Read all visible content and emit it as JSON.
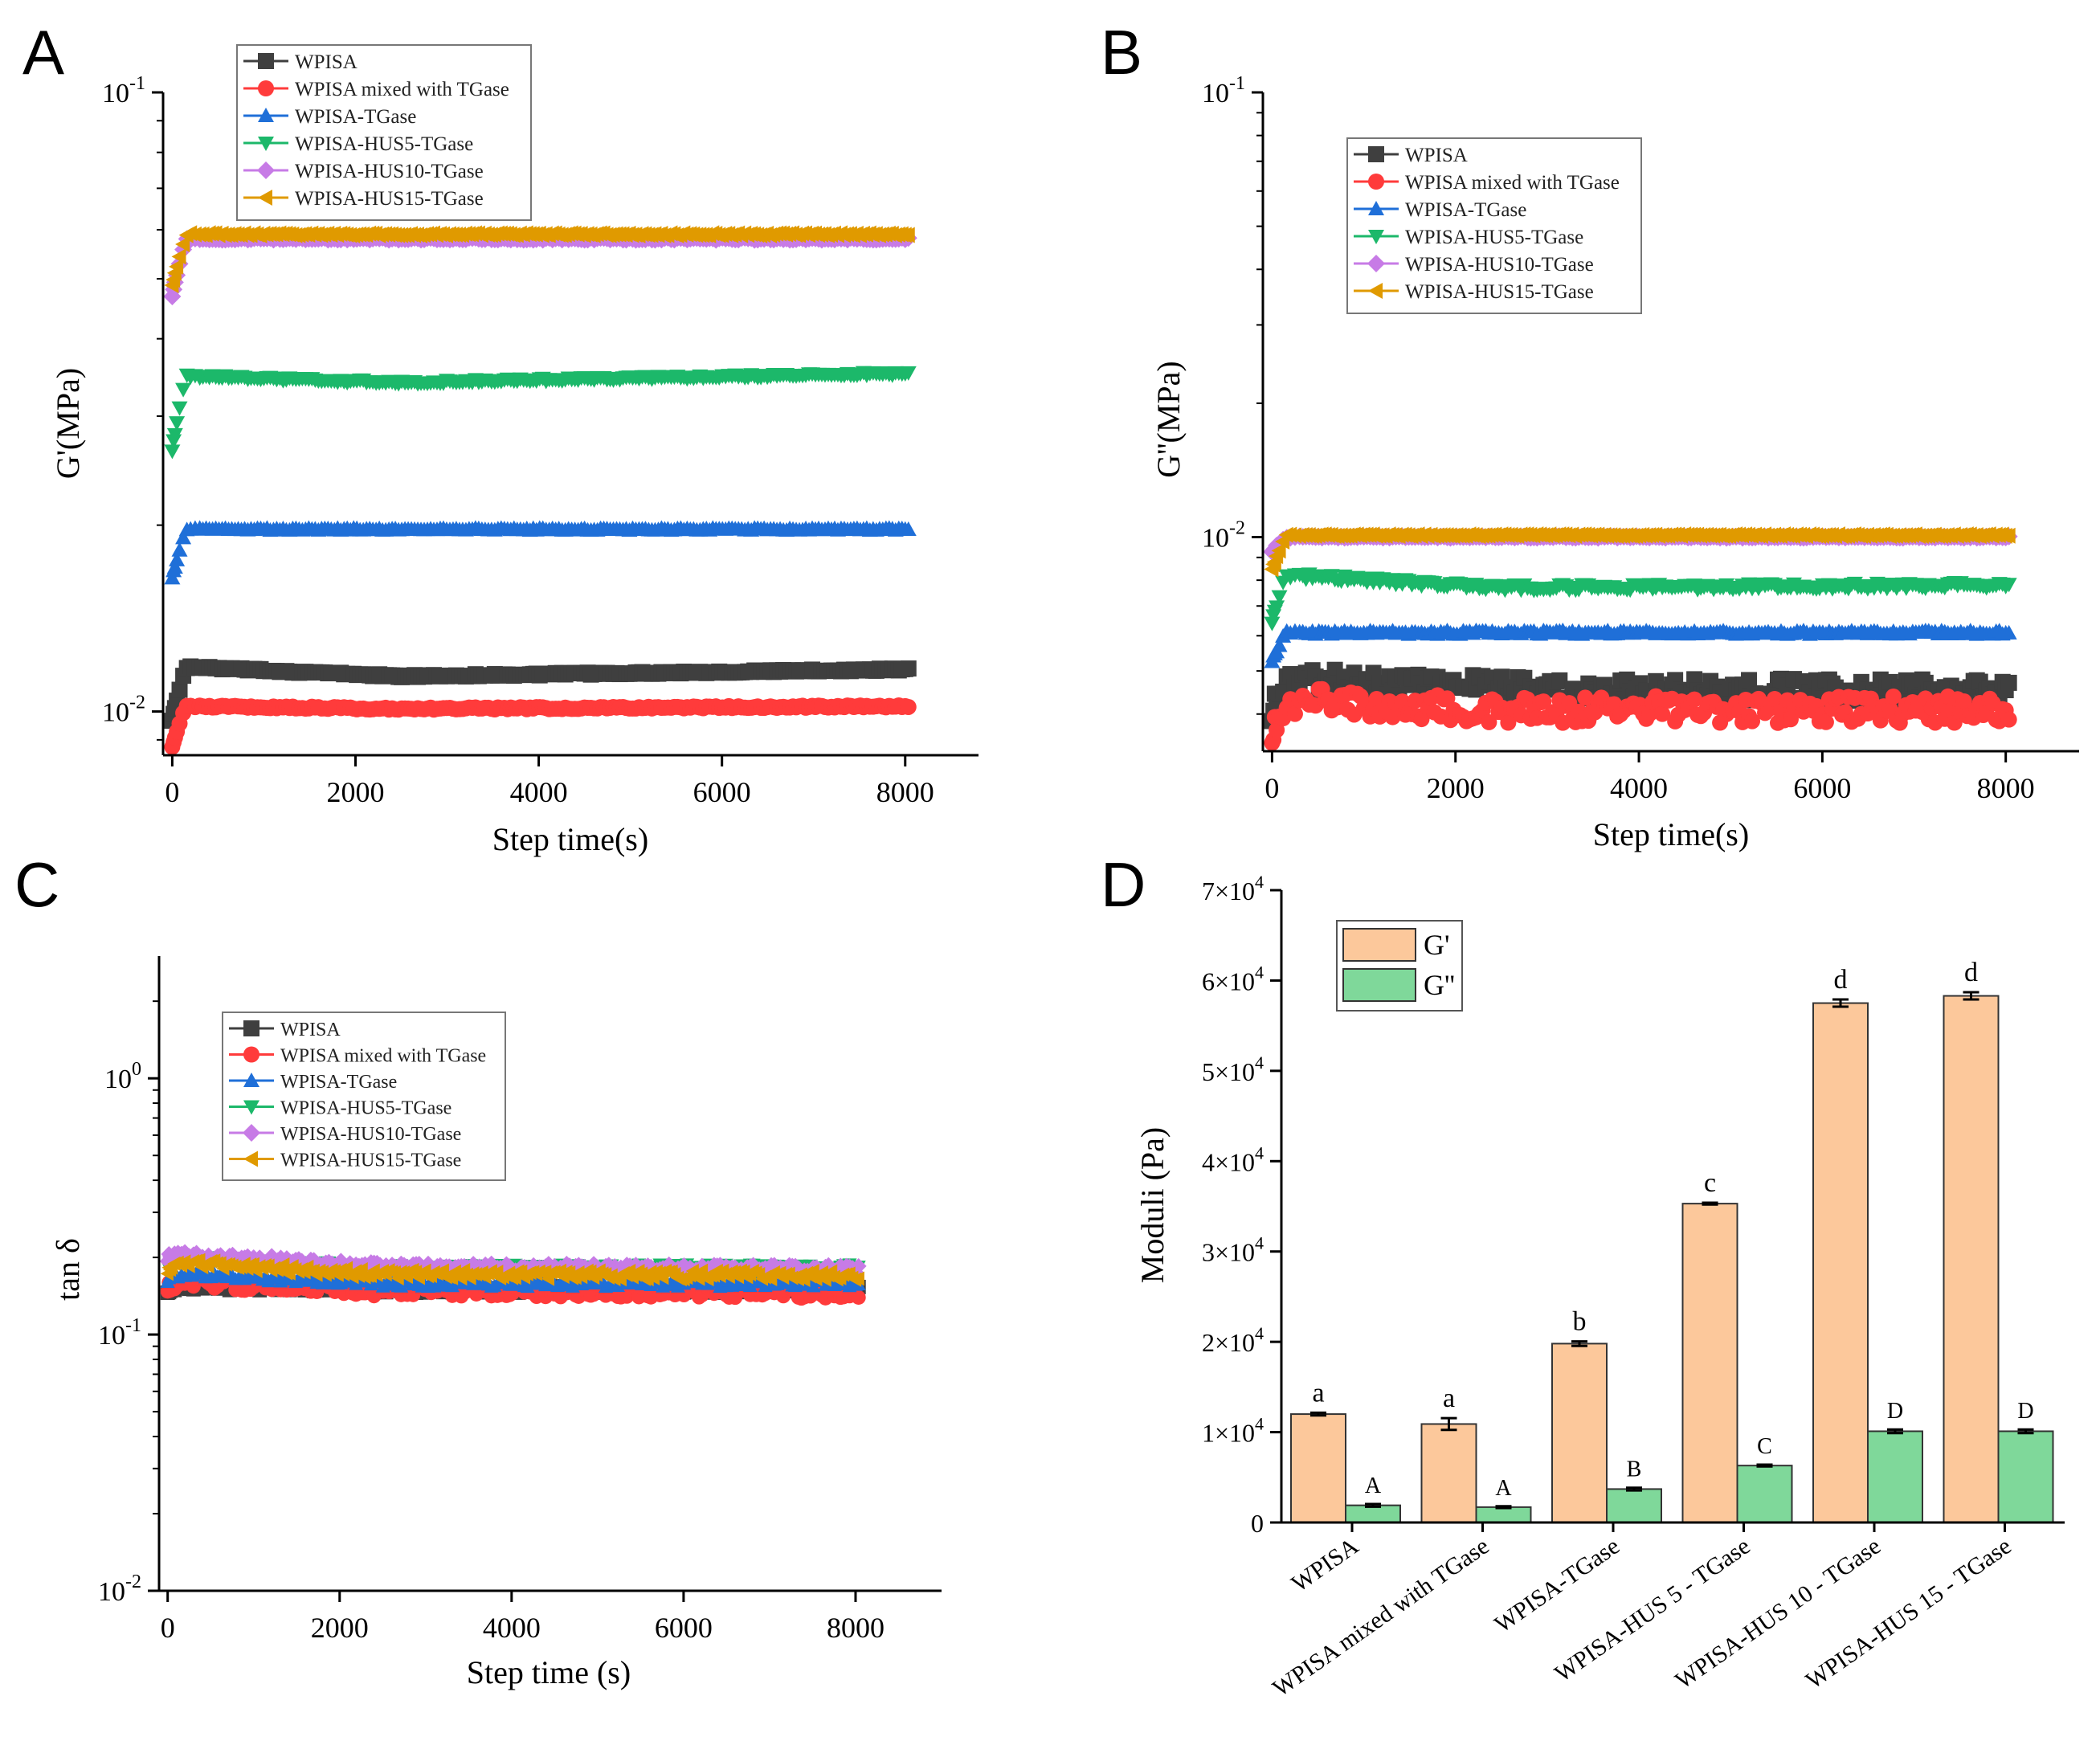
{
  "chart_data": [
    {
      "panel": "A",
      "type": "scatter",
      "xlabel": "Step time(s)",
      "ylabel": "G'(MPa)",
      "yscale": "log",
      "xlim": [
        -100,
        8800
      ],
      "ylim": [
        0.0085,
        0.1
      ],
      "xticks": [
        "0",
        "2000",
        "4000",
        "6000",
        "8000"
      ],
      "xtick_values": [
        0,
        2000,
        4000,
        6000,
        8000
      ],
      "yticks": [
        {
          "value": 0.1,
          "base": "10",
          "exp": "-1"
        },
        {
          "value": 0.01,
          "base": "10",
          "exp": "-2"
        }
      ],
      "legend_position": "top-left",
      "series": [
        {
          "name": "WPISA",
          "color": "#3f3f3f",
          "marker": "square",
          "start": 0.0097,
          "peak": 0.0118,
          "plateau": 0.0114,
          "end": 0.0117
        },
        {
          "name": "WPISA mixed with TGase",
          "color": "#ff3b3b",
          "marker": "circle",
          "start": 0.0088,
          "peak": 0.0102,
          "plateau": 0.0101,
          "end": 0.0102
        },
        {
          "name": "WPISA-TGase",
          "color": "#1f6fd8",
          "marker": "triangle-up",
          "start": 0.0165,
          "peak": 0.0197,
          "plateau": 0.0197,
          "end": 0.0197
        },
        {
          "name": "WPISA-HUS5-TGase",
          "color": "#1cb86a",
          "marker": "triangle-down",
          "start": 0.0265,
          "peak": 0.0348,
          "plateau": 0.034,
          "end": 0.0352
        },
        {
          "name": "WPISA-HUS10-TGase",
          "color": "#c77be6",
          "marker": "diamond",
          "start": 0.047,
          "peak": 0.058,
          "plateau": 0.058,
          "end": 0.058
        },
        {
          "name": "WPISA-HUS15-TGase",
          "color": "#e09a00",
          "marker": "triangle-left",
          "start": 0.049,
          "peak": 0.059,
          "plateau": 0.059,
          "end": 0.059
        }
      ]
    },
    {
      "panel": "B",
      "type": "scatter",
      "xlabel": "Step time(s)",
      "ylabel": "G''(MPa)",
      "yscale": "log",
      "xlim": [
        -100,
        8800
      ],
      "ylim": [
        0.0033,
        0.1
      ],
      "xticks": [
        "0",
        "2000",
        "4000",
        "6000",
        "8000"
      ],
      "xtick_values": [
        0,
        2000,
        4000,
        6000,
        8000
      ],
      "yticks": [
        {
          "value": 0.1,
          "base": "10",
          "exp": "-1"
        },
        {
          "value": 0.01,
          "base": "10",
          "exp": "-2"
        }
      ],
      "legend_position": "top-right",
      "series": [
        {
          "name": "WPISA",
          "color": "#3f3f3f",
          "marker": "square",
          "start": 0.0041,
          "peak": 0.0048,
          "plateau": 0.0046,
          "end": 0.0045
        },
        {
          "name": "WPISA mixed with TGase",
          "color": "#ff3b3b",
          "marker": "circle",
          "start": 0.0037,
          "peak": 0.0043,
          "plateau": 0.0041,
          "end": 0.0041
        },
        {
          "name": "WPISA-TGase",
          "color": "#1f6fd8",
          "marker": "triangle-up",
          "start": 0.0053,
          "peak": 0.0061,
          "plateau": 0.0061,
          "end": 0.0061
        },
        {
          "name": "WPISA-HUS5-TGase",
          "color": "#1cb86a",
          "marker": "triangle-down",
          "start": 0.0065,
          "peak": 0.0082,
          "plateau": 0.0077,
          "end": 0.0078
        },
        {
          "name": "WPISA-HUS10-TGase",
          "color": "#c77be6",
          "marker": "diamond",
          "start": 0.0093,
          "peak": 0.01,
          "plateau": 0.01,
          "end": 0.01
        },
        {
          "name": "WPISA-HUS15-TGase",
          "color": "#e09a00",
          "marker": "triangle-left",
          "start": 0.0085,
          "peak": 0.0101,
          "plateau": 0.0101,
          "end": 0.0101
        }
      ]
    },
    {
      "panel": "C",
      "type": "scatter",
      "xlabel": "Step time (s)",
      "ylabel": "tan δ",
      "yscale": "log",
      "xlim": [
        -100,
        9000
      ],
      "ylim": [
        0.01,
        3
      ],
      "xticks": [
        "0",
        "2000",
        "4000",
        "6000",
        "8000"
      ],
      "xtick_values": [
        0,
        2000,
        4000,
        6000,
        8000
      ],
      "yticks": [
        {
          "value": 1,
          "base": "10",
          "exp": "0"
        },
        {
          "value": 0.1,
          "base": "10",
          "exp": "-1"
        },
        {
          "value": 0.01,
          "base": "10",
          "exp": "-2"
        }
      ],
      "legend_position": "top-left",
      "series": [
        {
          "name": "WPISA",
          "color": "#3f3f3f",
          "marker": "square",
          "start": 0.15,
          "peak": 0.155,
          "plateau": 0.15,
          "end": 0.15
        },
        {
          "name": "WPISA mixed with TGase",
          "color": "#ff3b3b",
          "marker": "circle",
          "start": 0.155,
          "peak": 0.16,
          "plateau": 0.148,
          "end": 0.145
        },
        {
          "name": "WPISA-TGase",
          "color": "#1f6fd8",
          "marker": "triangle-up",
          "start": 0.165,
          "peak": 0.172,
          "plateau": 0.158,
          "end": 0.158
        },
        {
          "name": "WPISA-HUS5-TGase",
          "color": "#1cb86a",
          "marker": "triangle-down",
          "start": 0.19,
          "peak": 0.198,
          "plateau": 0.182,
          "end": 0.183
        },
        {
          "name": "WPISA-HUS10-TGase",
          "color": "#c77be6",
          "marker": "diamond",
          "start": 0.2,
          "peak": 0.205,
          "plateau": 0.185,
          "end": 0.18
        },
        {
          "name": "WPISA-HUS15-TGase",
          "color": "#e09a00",
          "marker": "triangle-left",
          "start": 0.18,
          "peak": 0.19,
          "plateau": 0.172,
          "end": 0.17
        }
      ]
    },
    {
      "panel": "D",
      "type": "bar",
      "ylabel": "Moduli (Pa)",
      "ylim": [
        0,
        70000
      ],
      "yticks": [
        {
          "value": 0,
          "mant": "0",
          "exp": ""
        },
        {
          "value": 10000,
          "mant": "1×10",
          "exp": "4"
        },
        {
          "value": 20000,
          "mant": "2×10",
          "exp": "4"
        },
        {
          "value": 30000,
          "mant": "3×10",
          "exp": "4"
        },
        {
          "value": 40000,
          "mant": "4×10",
          "exp": "4"
        },
        {
          "value": 50000,
          "mant": "5×10",
          "exp": "4"
        },
        {
          "value": 60000,
          "mant": "6×10",
          "exp": "4"
        },
        {
          "value": 70000,
          "mant": "7×10",
          "exp": "4"
        }
      ],
      "categories": [
        "WPISA",
        "WPISA mixed with TGase",
        "WPISA-TGase",
        "WPISA-HUS 5 - TGase",
        "WPISA-HUS 10 - TGase",
        "WPISA-HUS 15 - TGase"
      ],
      "legend_position": "top-left",
      "series": [
        {
          "name": "G'",
          "color": "#fcc89b",
          "values": [
            12000,
            10900,
            19800,
            35300,
            57500,
            58300
          ],
          "errors": [
            150,
            650,
            250,
            100,
            400,
            400
          ],
          "letters": [
            "a",
            "a",
            "b",
            "c",
            "d",
            "d"
          ]
        },
        {
          "name": "G''",
          "color": "#7fd89a",
          "values": [
            1900,
            1700,
            3700,
            6300,
            10100,
            10100
          ],
          "errors": [
            150,
            100,
            150,
            100,
            200,
            200
          ],
          "letters": [
            "A",
            "A",
            "B",
            "C",
            "D",
            "D"
          ]
        }
      ]
    }
  ]
}
